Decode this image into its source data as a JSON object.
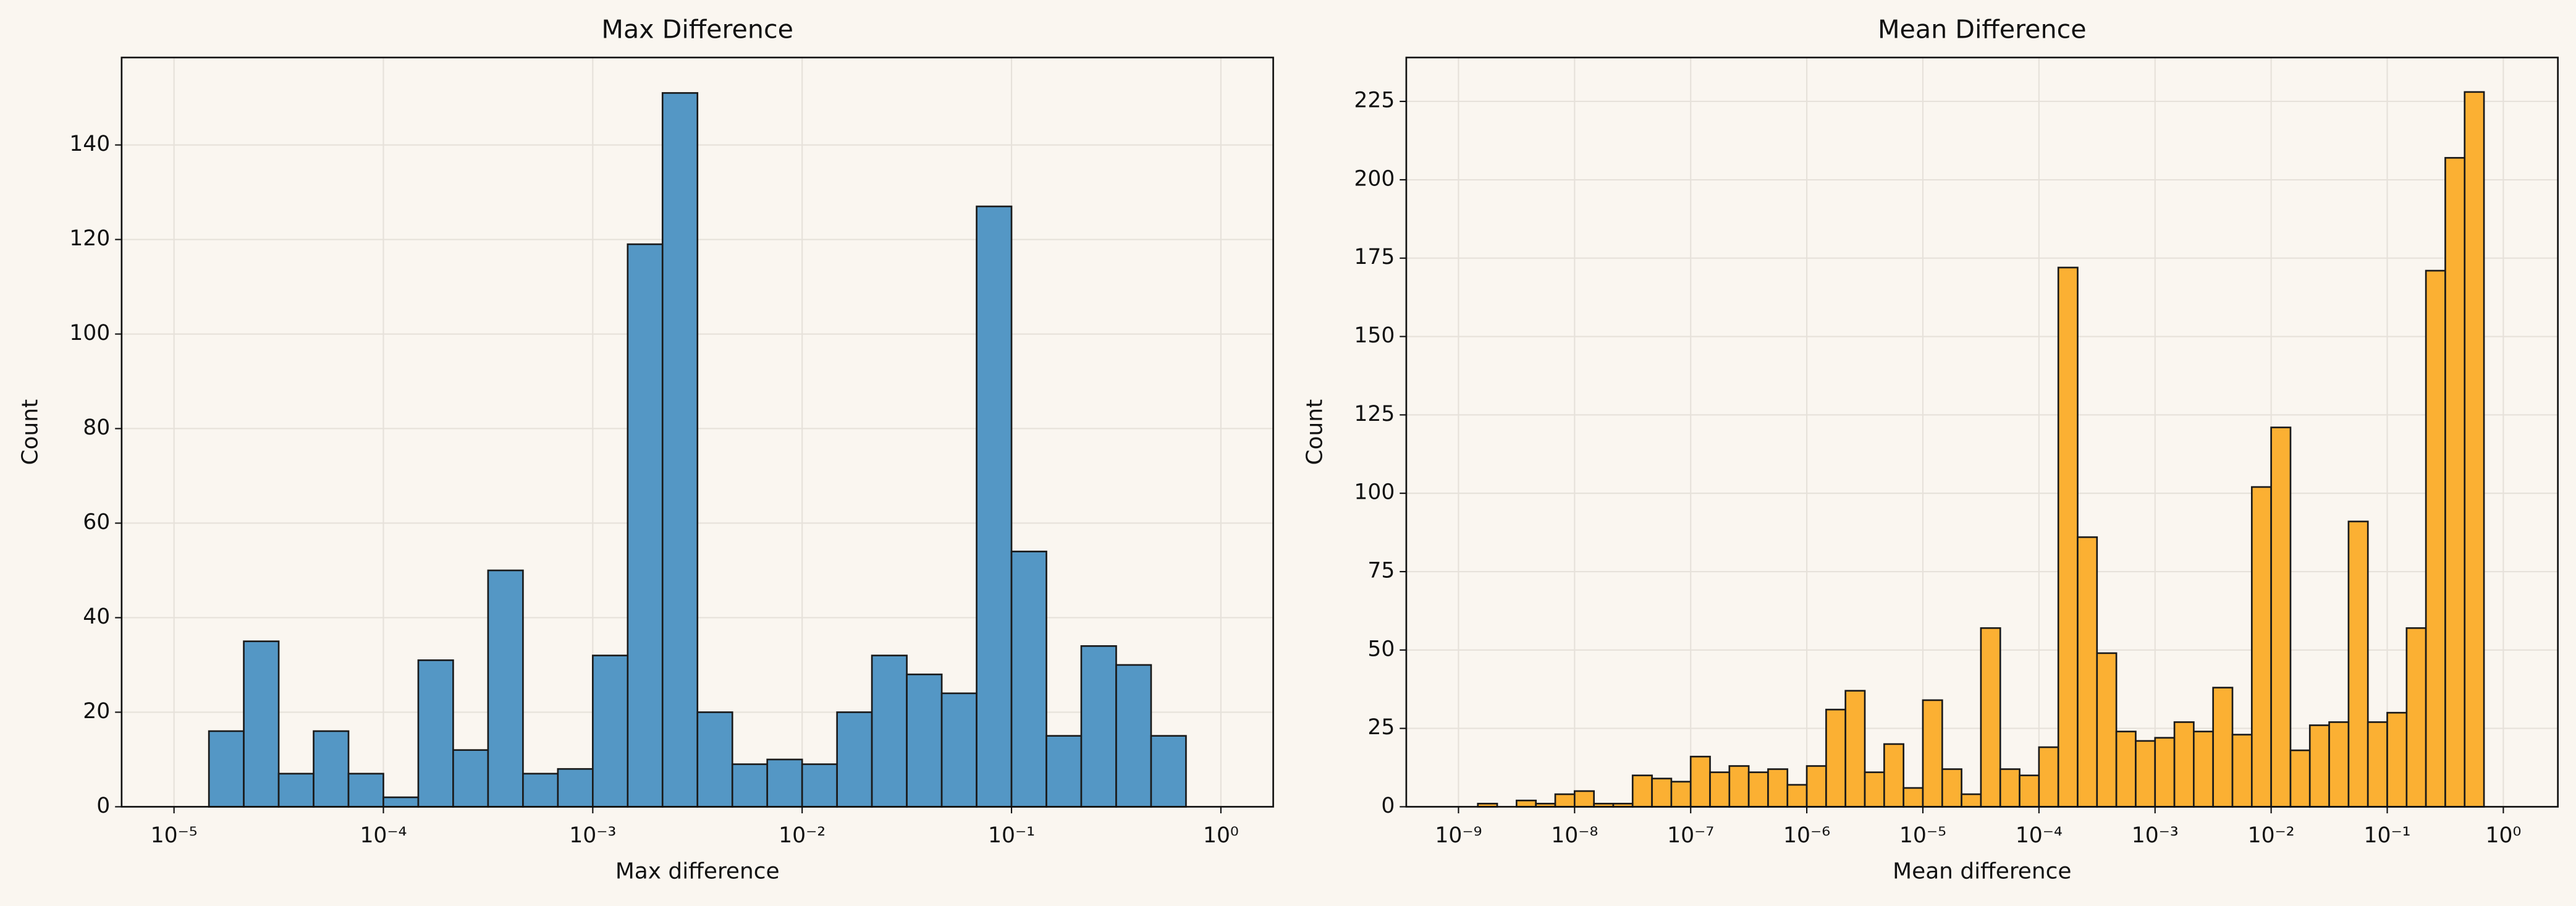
{
  "chart_data": [
    {
      "type": "histogram",
      "title": "Max Difference",
      "xlabel": "Max difference",
      "ylabel": "Count",
      "log_x": true,
      "grid": true,
      "color": "#5497c5",
      "bins": [
        1.468e-05,
        2.154e-05,
        3.162e-05,
        4.642e-05,
        6.813e-05,
        0.0001,
        0.0001468,
        0.0002154,
        0.0003162,
        0.0004642,
        0.0006813,
        0.001,
        0.001468,
        0.002154,
        0.003162,
        0.004642,
        0.006813,
        0.01,
        0.01468,
        0.02154,
        0.03162,
        0.04642,
        0.06813,
        0.1,
        0.1468,
        0.2154,
        0.3162,
        0.4642,
        0.6813
      ],
      "values": [
        16,
        35,
        7,
        16,
        7,
        2,
        31,
        12,
        50,
        7,
        8,
        32,
        119,
        151,
        20,
        9,
        10,
        9,
        20,
        32,
        28,
        24,
        127,
        54,
        15,
        34,
        30,
        15
      ],
      "xlim": [
        5.62e-06,
        1.778
      ],
      "ylim": [
        0,
        158.5
      ],
      "xticks": [
        {
          "value": 1e-05,
          "label": "10⁻⁵"
        },
        {
          "value": 0.0001,
          "label": "10⁻⁴"
        },
        {
          "value": 0.001,
          "label": "10⁻³"
        },
        {
          "value": 0.01,
          "label": "10⁻²"
        },
        {
          "value": 0.1,
          "label": "10⁻¹"
        },
        {
          "value": 1,
          "label": "10⁰"
        }
      ],
      "yticks": [
        0,
        20,
        40,
        60,
        80,
        100,
        120,
        140
      ]
    },
    {
      "type": "histogram",
      "title": "Mean Difference",
      "xlabel": "Mean difference",
      "ylabel": "Count",
      "log_x": true,
      "grid": true,
      "color": "#fbb033",
      "bins": [
        1.468e-09,
        2.154e-09,
        3.162e-09,
        4.642e-09,
        6.813e-09,
        1e-08,
        1.468e-08,
        2.154e-08,
        3.162e-08,
        4.642e-08,
        6.813e-08,
        1e-07,
        1.468e-07,
        2.154e-07,
        3.162e-07,
        4.642e-07,
        6.813e-07,
        1e-06,
        1.468e-06,
        2.154e-06,
        3.162e-06,
        4.642e-06,
        6.813e-06,
        1e-05,
        1.468e-05,
        2.154e-05,
        3.162e-05,
        4.642e-05,
        6.813e-05,
        0.0001,
        0.0001468,
        0.0002154,
        0.0003162,
        0.0004642,
        0.0006813,
        0.001,
        0.001468,
        0.002154,
        0.003162,
        0.004642,
        0.006813,
        0.01,
        0.01468,
        0.02154,
        0.03162,
        0.04642,
        0.06813,
        0.1,
        0.1468,
        0.2154,
        0.3162,
        0.4642,
        0.6813
      ],
      "values": [
        1,
        0,
        2,
        1,
        4,
        5,
        1,
        1,
        10,
        9,
        8,
        16,
        11,
        13,
        11,
        12,
        7,
        13,
        31,
        37,
        11,
        20,
        6,
        34,
        12,
        4,
        57,
        12,
        10,
        19,
        172,
        86,
        49,
        24,
        21,
        22,
        27,
        24,
        38,
        23,
        102,
        121,
        18,
        26,
        27,
        91,
        27,
        30,
        57,
        171,
        207,
        228
      ],
      "xlim": [
        3.55e-10,
        2.95
      ],
      "ylim": [
        0,
        239
      ],
      "xticks": [
        {
          "value": 1e-09,
          "label": "10⁻⁹"
        },
        {
          "value": 1e-08,
          "label": "10⁻⁸"
        },
        {
          "value": 1e-07,
          "label": "10⁻⁷"
        },
        {
          "value": 1e-06,
          "label": "10⁻⁶"
        },
        {
          "value": 1e-05,
          "label": "10⁻⁵"
        },
        {
          "value": 0.0001,
          "label": "10⁻⁴"
        },
        {
          "value": 0.001,
          "label": "10⁻³"
        },
        {
          "value": 0.01,
          "label": "10⁻²"
        },
        {
          "value": 0.1,
          "label": "10⁻¹"
        },
        {
          "value": 1,
          "label": "10⁰"
        }
      ],
      "yticks": [
        0,
        25,
        50,
        75,
        100,
        125,
        150,
        175,
        200,
        225
      ]
    }
  ]
}
